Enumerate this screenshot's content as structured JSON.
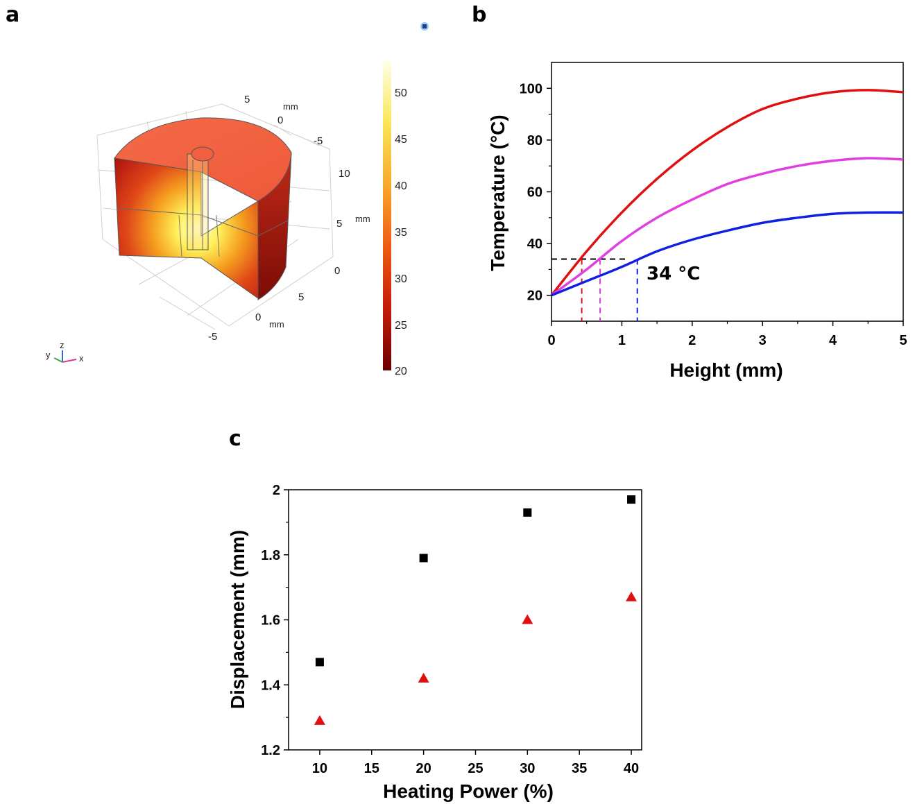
{
  "panels": {
    "a": "a",
    "b": "b",
    "c": "c"
  },
  "panel_a": {
    "colorbar_ticks": [
      "50",
      "45",
      "40",
      "35",
      "30",
      "25",
      "20"
    ],
    "axis_labels": {
      "mm_top": "mm",
      "mm_right": "mm",
      "mm_bottom": "mm",
      "top_5": "5",
      "top_0": "0",
      "top_m5": "-5",
      "right_10": "10",
      "right_5": "5",
      "right_0": "0",
      "bottom_5": "5",
      "bottom_0": "0",
      "bottom_m5": "-5"
    },
    "triad": {
      "y": "y",
      "z": "z",
      "x": "x"
    }
  },
  "chart_data": [
    {
      "type": "line",
      "xlabel": "Height (mm)",
      "ylabel": "Temperature (°C)",
      "xlim": [
        0,
        5
      ],
      "ylim": [
        10,
        110
      ],
      "xticks": [
        "0",
        "1",
        "2",
        "3",
        "4",
        "5"
      ],
      "yticks": [
        "20",
        "40",
        "60",
        "80",
        "100"
      ],
      "annotation": "34 °C",
      "threshold": 34,
      "threshold_x": [
        0.43,
        0.69,
        1.22
      ],
      "series": [
        {
          "color": "#e01010",
          "x": [
            0,
            0.5,
            1.0,
            1.5,
            2.0,
            2.5,
            3.0,
            3.5,
            4.0,
            4.5,
            5.0
          ],
          "y": [
            20,
            37,
            52,
            65,
            76,
            85,
            92,
            96,
            98.5,
            99.3,
            98.5
          ]
        },
        {
          "color": "#e040e0",
          "x": [
            0,
            0.5,
            1.0,
            1.5,
            2.0,
            2.5,
            3.0,
            3.5,
            4.0,
            4.5,
            5.0
          ],
          "y": [
            20,
            30,
            41,
            50,
            57,
            63,
            67,
            70,
            72,
            73,
            72.5
          ]
        },
        {
          "color": "#1020e0",
          "x": [
            0,
            0.5,
            1.0,
            1.5,
            2.0,
            2.5,
            3.0,
            3.5,
            4.0,
            4.5,
            5.0
          ],
          "y": [
            20,
            25.5,
            31,
            37,
            41.5,
            45,
            48,
            50,
            51.5,
            52,
            52
          ]
        }
      ]
    },
    {
      "type": "scatter",
      "xlabel": "Heating Power (%)",
      "ylabel": "Displacement (mm)",
      "xlim": [
        7,
        41
      ],
      "ylim": [
        1.2,
        2.0
      ],
      "xticks": [
        "10",
        "15",
        "20",
        "25",
        "30",
        "35",
        "40"
      ],
      "yticks": [
        "1.2",
        "1.4",
        "1.6",
        "1.8",
        "2"
      ],
      "series": [
        {
          "marker": "square",
          "color": "#000000",
          "x": [
            10,
            20,
            30,
            40
          ],
          "y": [
            1.47,
            1.79,
            1.93,
            1.97
          ]
        },
        {
          "marker": "triangle",
          "color": "#e01010",
          "x": [
            10,
            20,
            30,
            40
          ],
          "y": [
            1.29,
            1.42,
            1.6,
            1.67
          ]
        }
      ]
    }
  ]
}
